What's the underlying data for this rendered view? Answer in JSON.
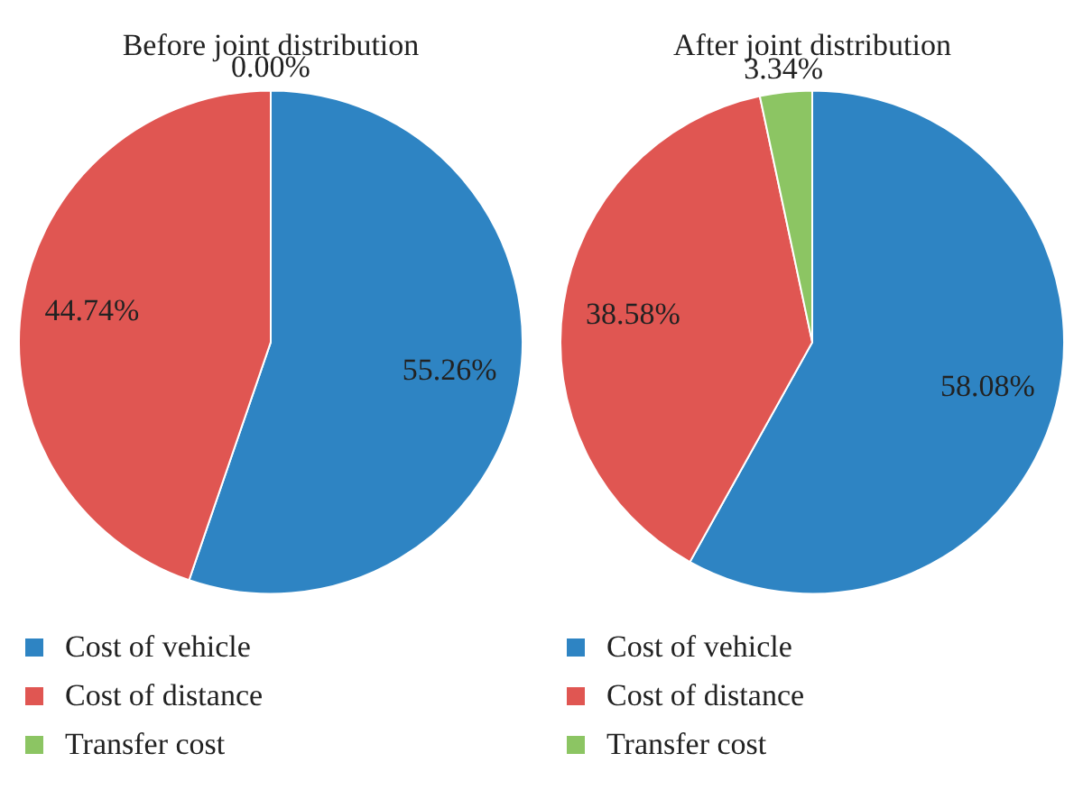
{
  "chart_data": [
    {
      "type": "pie",
      "title": "Before joint distribution",
      "categories": [
        "Cost of vehicle",
        "Cost of distance",
        "Transfer cost"
      ],
      "values": [
        55.26,
        44.74,
        0.0
      ],
      "colors": [
        "#2e84c3",
        "#e05652",
        "#8cc563"
      ],
      "value_labels": [
        "55.26%",
        "44.74%",
        "0.00%"
      ],
      "legend": "bottom"
    },
    {
      "type": "pie",
      "title": "After joint distribution",
      "categories": [
        "Cost of vehicle",
        "Cost of distance",
        "Transfer cost"
      ],
      "values": [
        58.08,
        38.58,
        3.34
      ],
      "colors": [
        "#2e84c3",
        "#e05652",
        "#8cc563"
      ],
      "value_labels": [
        "58.08%",
        "38.58%",
        "3.34%"
      ],
      "legend": "bottom"
    }
  ]
}
